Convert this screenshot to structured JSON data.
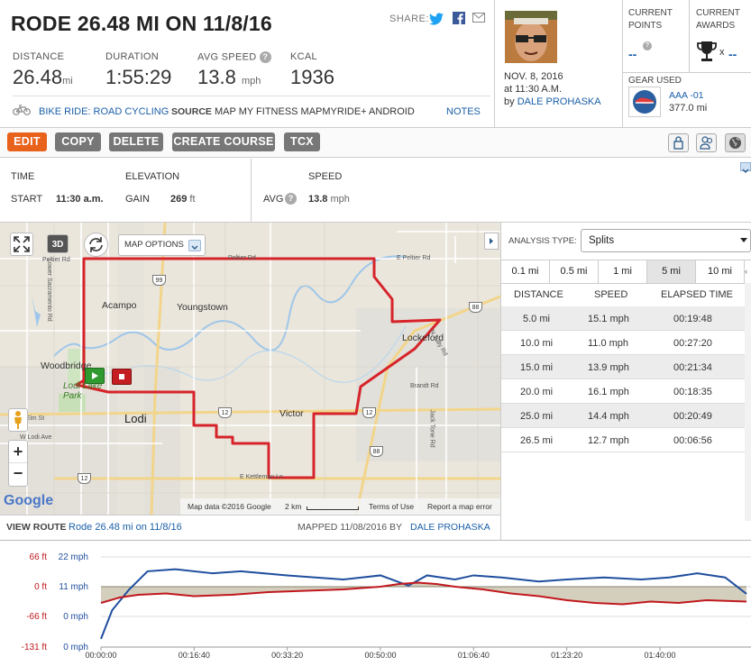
{
  "header": {
    "title": "RODE 26.48 MI ON 11/8/16",
    "share_label": "SHARE:",
    "stats": [
      {
        "label": "DISTANCE",
        "value": "26.48",
        "unit": "mi"
      },
      {
        "label": "DURATION",
        "value": "1:55:29",
        "unit": ""
      },
      {
        "label": "AVG SPEED",
        "value": "13.8",
        "unit": "mph"
      },
      {
        "label": "KCAL",
        "value": "1936",
        "unit": ""
      }
    ],
    "activity_type": "BIKE RIDE: ROAD CYCLING",
    "source_label": "SOURCE",
    "source_value": "MAP MY FITNESS MAPMYRIDE+ ANDROID",
    "notes_label": "NOTES"
  },
  "user": {
    "date": "NOV. 8, 2016",
    "time": "at 11:30 A.M.",
    "by": "by",
    "name": "DALE PROHASKA"
  },
  "panels": {
    "points_label": "CURRENT POINTS",
    "points_value": "--",
    "awards_label": "CURRENT AWARDS",
    "awards_x": "x",
    "awards_value": "--",
    "gear_label": "GEAR USED",
    "gear_name": "AAA -01",
    "gear_distance": "377.0 mi"
  },
  "toolbar": {
    "edit": "EDIT",
    "copy": "COPY",
    "delete": "DELETE",
    "create_course": "CREATE COURSE",
    "tcx": "TCX"
  },
  "summary": {
    "time_label": "TIME",
    "start_label": "START",
    "start_value": "11:30 a.m.",
    "elevation_label": "ELEVATION",
    "gain_label": "GAIN",
    "gain_value": "269",
    "gain_unit": "ft",
    "speed_label": "SPEED",
    "avg_label": "AVG",
    "avg_value": "13.8",
    "avg_unit": "mph"
  },
  "map": {
    "map_options": "MAP OPTIONS",
    "threed": "3D",
    "places": [
      "Acampo",
      "Youngstown",
      "Lockeford",
      "Woodbridge",
      "Lodi Lake Park",
      "Lodi",
      "Victor"
    ],
    "roads": [
      "Peltier Rd",
      "Peltier Rd",
      "E Peltier Rd",
      "W Elm St",
      "W Lodi Ave",
      "Brandt Rd",
      "Jack Tone Rd",
      "E Kettleman Ln",
      "N Tully Rd",
      "Lower Sacramento Rd"
    ],
    "highway_shields": [
      "99",
      "88",
      "12",
      "12",
      "88",
      "12"
    ],
    "attribution": "Map data ©2016 Google",
    "scale": "2 km",
    "terms": "Terms of Use",
    "report": "Report a map error",
    "google": "Google"
  },
  "analysis": {
    "label": "ANALYSIS TYPE:",
    "type": "Splits",
    "tabs": [
      "0.1 mi",
      "0.5 mi",
      "1 mi",
      "5 mi",
      "10 mi"
    ],
    "selected_tab": "5 mi",
    "columns": [
      "DISTANCE",
      "SPEED",
      "ELAPSED TIME"
    ],
    "rows": [
      [
        "5.0 mi",
        "15.1 mph",
        "00:19:48"
      ],
      [
        "10.0 mi",
        "11.0 mph",
        "00:27:20"
      ],
      [
        "15.0 mi",
        "13.9 mph",
        "00:21:34"
      ],
      [
        "20.0 mi",
        "16.1 mph",
        "00:18:35"
      ],
      [
        "25.0 mi",
        "14.4 mph",
        "00:20:49"
      ],
      [
        "26.5 mi",
        "12.7 mph",
        "00:06:56"
      ]
    ]
  },
  "footer": {
    "view_route_label": "VIEW ROUTE",
    "route_name": "Rode 26.48 mi on 11/8/16",
    "mapped_label": "MAPPED 11/08/2016 BY",
    "mapped_by": "DALE PROHASKA"
  },
  "chart_data": {
    "type": "line",
    "left_axis_ticks": [
      "66 ft",
      "0 ft",
      "-66 ft",
      "-131 ft"
    ],
    "right_axis_ticks": [
      "22 mph",
      "11 mph",
      "0 mph",
      "0 mph"
    ],
    "x_ticks": [
      "00:00:00",
      "00:16:40",
      "00:33:20",
      "00:50:00",
      "01:06:40",
      "01:23:20",
      "01:40:00"
    ],
    "xlim_seconds": [
      0,
      6929
    ],
    "series": [
      {
        "color": "#1f4e9e",
        "values": [
          [
            0,
            2
          ],
          [
            120,
            9
          ],
          [
            300,
            14
          ],
          [
            500,
            18.5
          ],
          [
            800,
            19
          ],
          [
            1200,
            18
          ],
          [
            1500,
            18.5
          ],
          [
            2000,
            17.5
          ],
          [
            2300,
            17
          ],
          [
            2600,
            16.5
          ],
          [
            2800,
            17
          ],
          [
            3000,
            17.5
          ],
          [
            3300,
            15
          ],
          [
            3500,
            17.5
          ],
          [
            3800,
            16.5
          ],
          [
            4000,
            17.5
          ],
          [
            4300,
            17
          ],
          [
            4700,
            16
          ],
          [
            5000,
            16.5
          ],
          [
            5400,
            17
          ],
          [
            5800,
            16.5
          ],
          [
            6100,
            17
          ],
          [
            6400,
            18
          ],
          [
            6700,
            17
          ],
          [
            6929,
            13
          ]
        ]
      },
      {
        "color": "#c0181d",
        "values": [
          [
            0,
            -12
          ],
          [
            200,
            -8
          ],
          [
            400,
            -6
          ],
          [
            700,
            -5
          ],
          [
            1000,
            -7
          ],
          [
            1400,
            -6
          ],
          [
            1800,
            -4
          ],
          [
            2200,
            -3
          ],
          [
            2600,
            -2
          ],
          [
            3000,
            0
          ],
          [
            3200,
            2
          ],
          [
            3400,
            3
          ],
          [
            3600,
            2
          ],
          [
            3800,
            0
          ],
          [
            4100,
            -2
          ],
          [
            4400,
            -5
          ],
          [
            4700,
            -7
          ],
          [
            5000,
            -10
          ],
          [
            5300,
            -12
          ],
          [
            5600,
            -13
          ],
          [
            5900,
            -11
          ],
          [
            6200,
            -12
          ],
          [
            6500,
            -10
          ],
          [
            6929,
            -11
          ]
        ]
      }
    ]
  }
}
